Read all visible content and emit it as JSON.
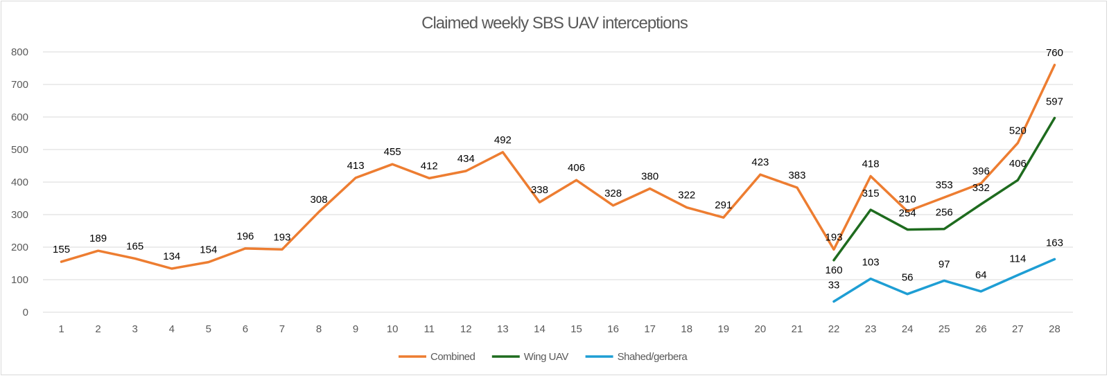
{
  "chart_data": {
    "type": "line",
    "title": "Claimed weekly SBS UAV interceptions",
    "xlabel": "",
    "ylabel": "",
    "x": [
      1,
      2,
      3,
      4,
      5,
      6,
      7,
      8,
      9,
      10,
      11,
      12,
      13,
      14,
      15,
      16,
      17,
      18,
      19,
      20,
      21,
      22,
      23,
      24,
      25,
      26,
      27,
      28
    ],
    "ylim": [
      0,
      800
    ],
    "yticks": [
      0,
      100,
      200,
      300,
      400,
      500,
      600,
      700,
      800
    ],
    "grid": true,
    "legend_position": "bottom",
    "series": [
      {
        "name": "Combined",
        "color": "#ED7D31",
        "values": [
          155,
          189,
          165,
          134,
          154,
          196,
          193,
          308,
          413,
          455,
          412,
          434,
          492,
          338,
          406,
          328,
          380,
          322,
          291,
          423,
          383,
          193,
          418,
          310,
          353,
          396,
          520,
          760
        ]
      },
      {
        "name": "Wing UAV",
        "color": "#1E6B1E",
        "values": [
          null,
          null,
          null,
          null,
          null,
          null,
          null,
          null,
          null,
          null,
          null,
          null,
          null,
          null,
          null,
          null,
          null,
          null,
          null,
          null,
          null,
          160,
          315,
          254,
          256,
          332,
          406,
          597
        ]
      },
      {
        "name": "Shahed/gerbera",
        "color": "#1E9ED4",
        "values": [
          null,
          null,
          null,
          null,
          null,
          null,
          null,
          null,
          null,
          null,
          null,
          null,
          null,
          null,
          null,
          null,
          null,
          null,
          null,
          null,
          null,
          33,
          103,
          56,
          97,
          64,
          114,
          163
        ]
      }
    ]
  }
}
